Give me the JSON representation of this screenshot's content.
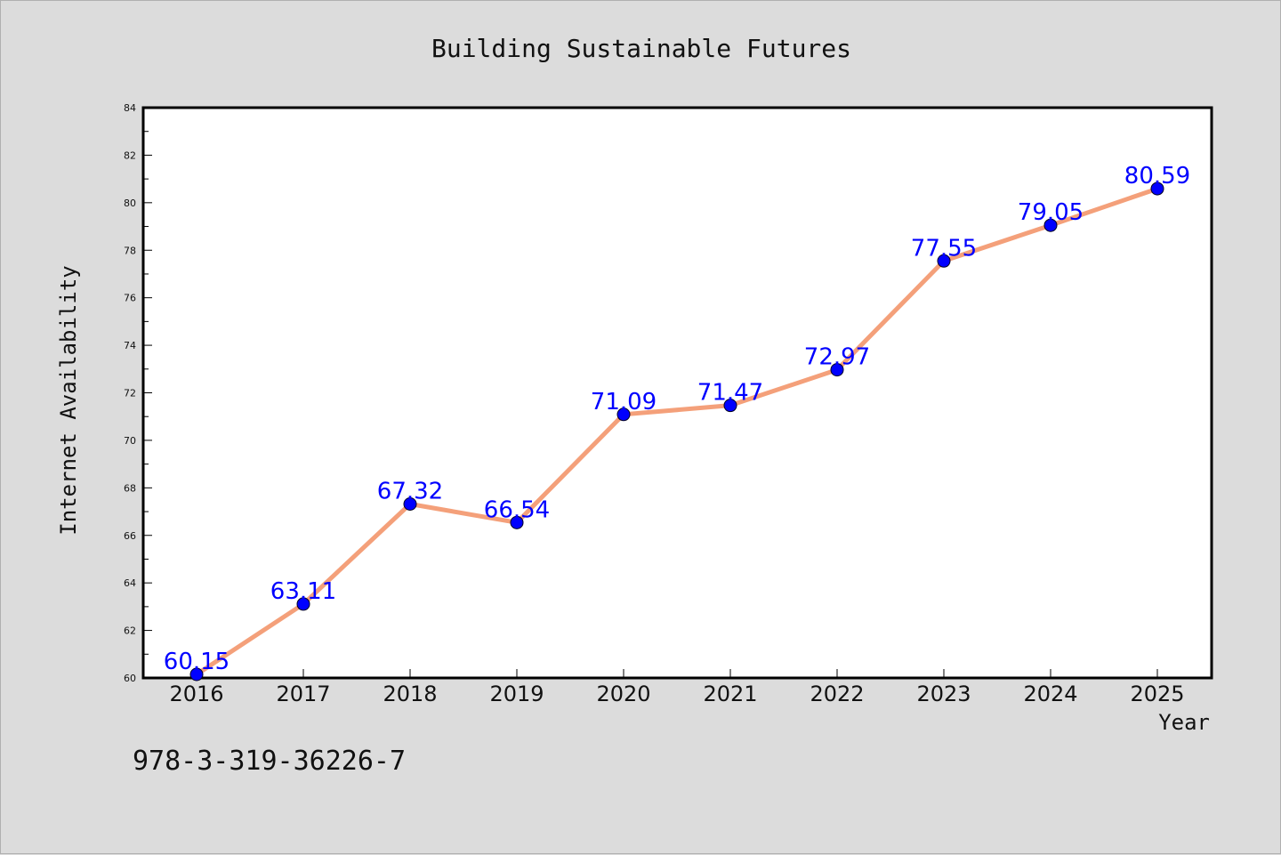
{
  "chart_data": {
    "type": "line",
    "title": "Building Sustainable Futures",
    "xlabel": "Year",
    "ylabel": "Internet Availability",
    "x": [
      "2016",
      "2017",
      "2018",
      "2019",
      "2020",
      "2021",
      "2022",
      "2023",
      "2024",
      "2025"
    ],
    "series": [
      {
        "values": [
          60.15,
          63.11,
          67.32,
          66.54,
          71.09,
          71.47,
          72.97,
          77.55,
          79.05,
          80.59
        ],
        "labels": [
          "60.15",
          "63.11",
          "67.32",
          "66.54",
          "71.09",
          "71.47",
          "72.97",
          "77.55",
          "79.05",
          "80.59"
        ],
        "line_color": "#f4a07a",
        "marker_color": "#0000ff"
      }
    ],
    "ylim": [
      60,
      84
    ],
    "yticks": [
      "60",
      "62",
      "64",
      "66",
      "68",
      "70",
      "72",
      "74",
      "76",
      "78",
      "80",
      "82",
      "84"
    ],
    "grid": false,
    "legend": "none"
  },
  "footer": {
    "isbn": "978-3-319-36226-7"
  }
}
